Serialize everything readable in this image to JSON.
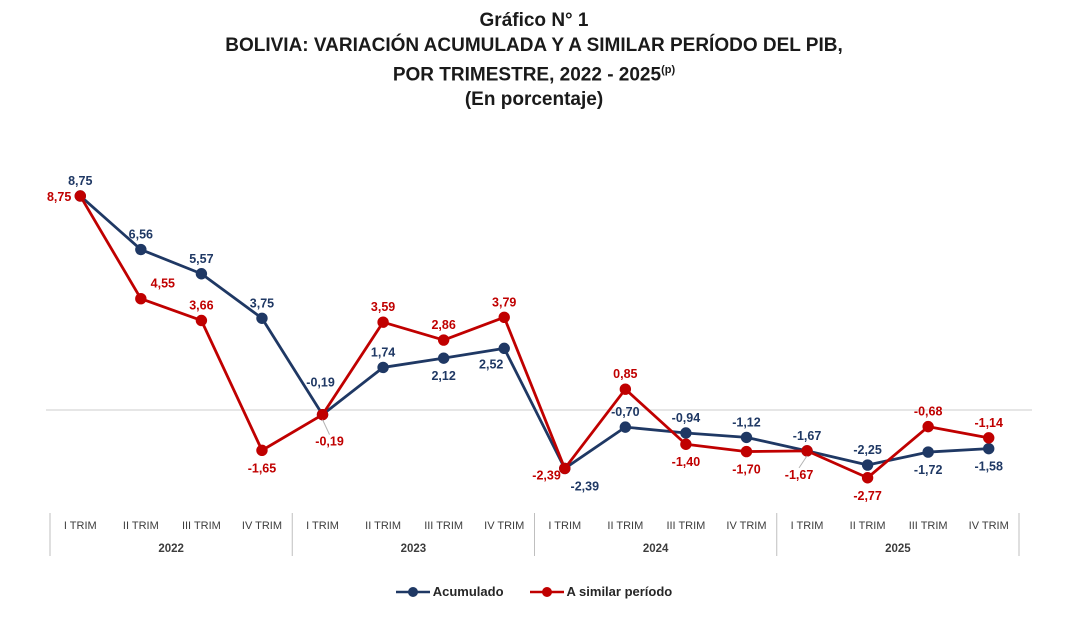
{
  "chart_data": {
    "type": "line",
    "title_lines": {
      "line1": "Gráfico N° 1",
      "line2": "BOLIVIA: VARIACIÓN ACUMULADA Y A SIMILAR PERÍODO DEL PIB,",
      "line3": "POR TRIMESTRE, 2022 - 2025",
      "line3_superscript": "(p)",
      "line4": "(En porcentaje)"
    },
    "years": [
      "2022",
      "2023",
      "2024",
      "2025"
    ],
    "quarters": [
      "I TRIM",
      "II TRIM",
      "III TRIM",
      "IV TRIM"
    ],
    "decimal_separator": ",",
    "ylim": [
      -4.5,
      10
    ],
    "grid": "zero-line-only",
    "legend_position": "bottom",
    "series": [
      {
        "name": "Acumulado",
        "color": "#1f3864",
        "values": [
          8.75,
          6.56,
          5.57,
          3.75,
          -0.19,
          1.74,
          2.12,
          2.52,
          -2.39,
          -0.7,
          -0.94,
          -1.12,
          -1.67,
          -2.25,
          -1.72,
          -1.58
        ],
        "label_pos": [
          "a",
          "a",
          "a",
          "a",
          "a3",
          "a",
          "b",
          "bl",
          "br",
          "a",
          "a",
          "a",
          "a",
          "a",
          "b",
          "b"
        ]
      },
      {
        "name": "A similar período",
        "color": "#c00000",
        "values": [
          8.75,
          4.55,
          3.66,
          -1.65,
          -0.19,
          3.59,
          2.86,
          3.79,
          -2.39,
          0.85,
          -1.4,
          -1.7,
          -1.67,
          -2.77,
          -0.68,
          -1.14
        ],
        "label_pos": [
          "l",
          "ar",
          "a",
          "b",
          "b2",
          "a",
          "a",
          "a",
          "l2",
          "a",
          "b",
          "b",
          "b3",
          "b",
          "a",
          "a"
        ]
      }
    ]
  },
  "legend": {
    "items": [
      {
        "label": "Acumulado",
        "color": "#1f3864"
      },
      {
        "label": "A similar período",
        "color": "#c00000"
      }
    ]
  }
}
